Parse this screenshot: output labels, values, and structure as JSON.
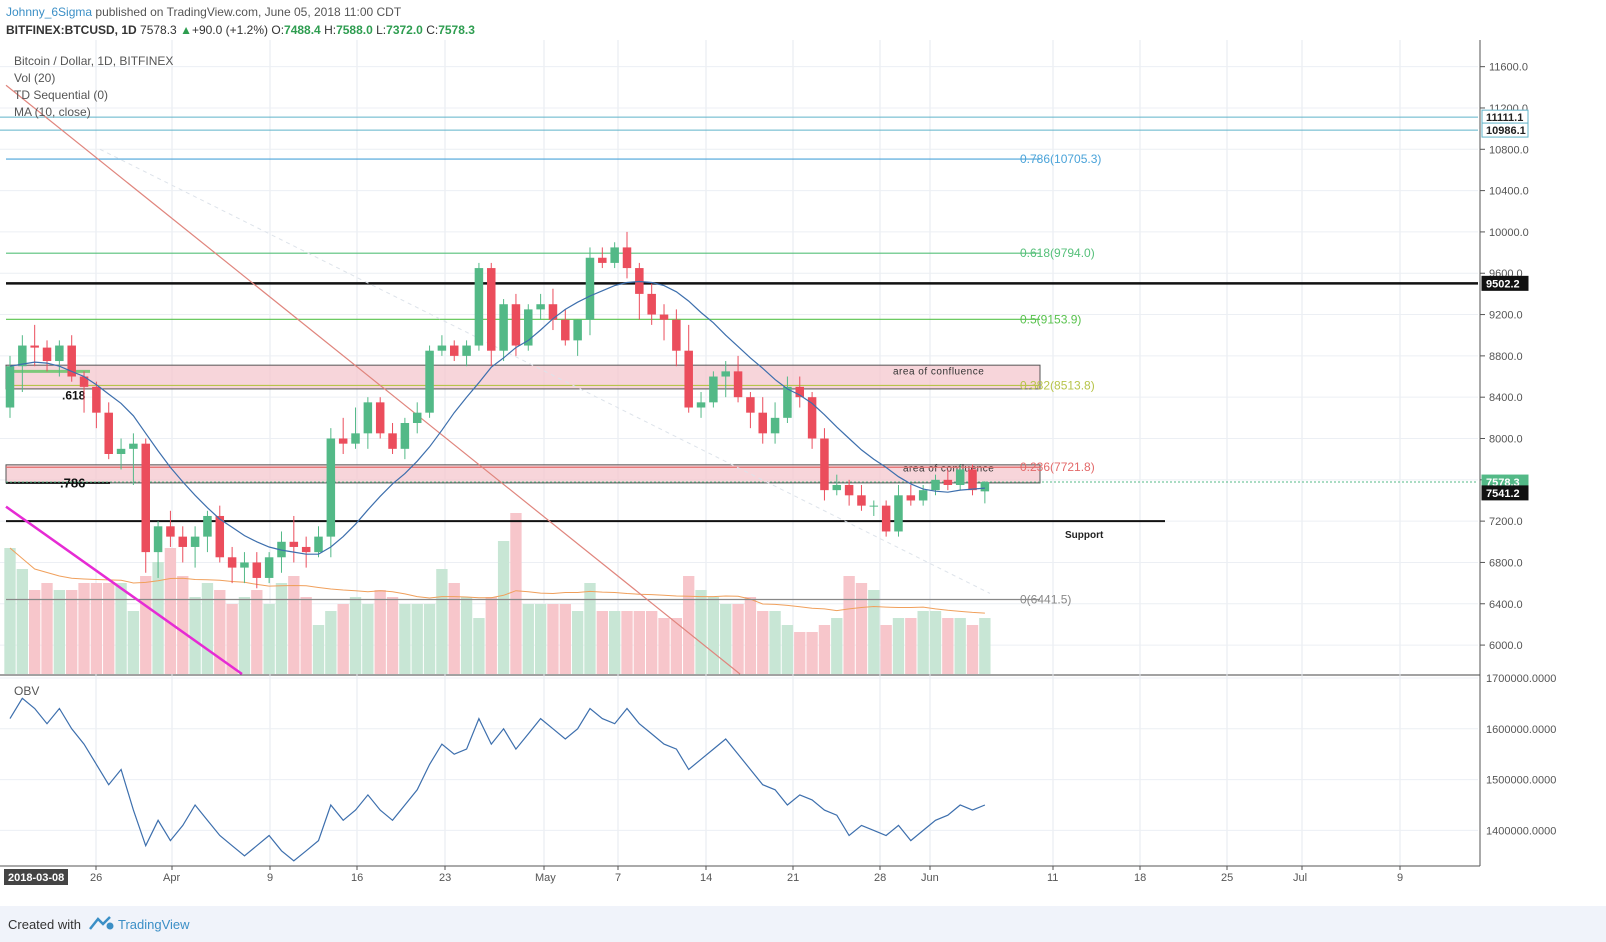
{
  "header": {
    "author": "Johnny_6Sigma",
    "published_text": "published on TradingView.com, June 05, 2018 11:00 CDT",
    "symbol": "BITFINEX:BTCUSD, 1D",
    "last": "7578.3",
    "change": "+90.0 (+1.2%)",
    "o_label": "O:",
    "o": "7488.4",
    "h_label": "H:",
    "h": "7588.0",
    "l_label": "L:",
    "l": "7372.0",
    "c_label": "C:",
    "c": "7578.3"
  },
  "legend": {
    "title": "Bitcoin / Dollar, 1D, BITFINEX",
    "vol": "Vol (20)",
    "td": "TD Sequential (0)",
    "ma": "MA (10, close)"
  },
  "footer": {
    "created_with": "Created with",
    "brand": "TradingView"
  },
  "colors": {
    "up": "#53b987",
    "down": "#eb4d5c",
    "obv": "#3d6fad",
    "ma": "#3d6fad",
    "zone": "#f4c7ce"
  },
  "chart_data": [
    {
      "type": "candlestick",
      "title": "Bitcoin / Dollar, 1D, BITFINEX",
      "x_ticks": [
        "2018-03-08",
        "26",
        "Apr",
        "9",
        "16",
        "23",
        "May",
        "7",
        "14",
        "21",
        "28",
        "Jun",
        "11",
        "18",
        "25",
        "Jul",
        "9"
      ],
      "y_ticks": [
        "11600.0",
        "11200.0",
        "10800.0",
        "10400.0",
        "10000.0",
        "9600.0",
        "9200.0",
        "8800.0",
        "8400.0",
        "8000.0",
        "7600.0",
        "7200.0",
        "6800.0",
        "6400.0",
        "6000.0"
      ],
      "ylim": [
        5720,
        11800
      ],
      "ohlc": [
        [
          8300,
          8800,
          8200,
          8700
        ],
        [
          8700,
          9000,
          8450,
          8900
        ],
        [
          8900,
          9100,
          8700,
          8880
        ],
        [
          8880,
          8950,
          8650,
          8750
        ],
        [
          8750,
          8950,
          8600,
          8900
        ],
        [
          8900,
          9000,
          8550,
          8600
        ],
        [
          8600,
          8650,
          8250,
          8500
        ],
        [
          8500,
          8550,
          8100,
          8250
        ],
        [
          8250,
          8350,
          7800,
          7850
        ],
        [
          7850,
          8000,
          7700,
          7900
        ],
        [
          7900,
          8050,
          7550,
          7950
        ],
        [
          7950,
          8000,
          6700,
          6900
        ],
        [
          6900,
          7200,
          6650,
          7150
        ],
        [
          7150,
          7300,
          6950,
          7050
        ],
        [
          7050,
          7150,
          6800,
          6950
        ],
        [
          6950,
          7150,
          6750,
          7050
        ],
        [
          7050,
          7300,
          6900,
          7250
        ],
        [
          7250,
          7350,
          6800,
          6850
        ],
        [
          6850,
          6950,
          6600,
          6750
        ],
        [
          6750,
          6900,
          6600,
          6800
        ],
        [
          6800,
          6900,
          6550,
          6650
        ],
        [
          6650,
          6900,
          6600,
          6850
        ],
        [
          6850,
          7100,
          6700,
          7000
        ],
        [
          7000,
          7250,
          6800,
          6950
        ],
        [
          6950,
          7050,
          6750,
          6900
        ],
        [
          6900,
          7150,
          6850,
          7050
        ],
        [
          7050,
          8100,
          6850,
          8000
        ],
        [
          8000,
          8200,
          7850,
          7950
        ],
        [
          7950,
          8300,
          7900,
          8050
        ],
        [
          8050,
          8400,
          7900,
          8350
        ],
        [
          8350,
          8400,
          8000,
          8050
        ],
        [
          8050,
          8150,
          7850,
          7900
        ],
        [
          7900,
          8200,
          7800,
          8150
        ],
        [
          8150,
          8350,
          8050,
          8250
        ],
        [
          8250,
          8900,
          8200,
          8850
        ],
        [
          8850,
          9000,
          8800,
          8900
        ],
        [
          8900,
          8950,
          8750,
          8800
        ],
        [
          8800,
          8950,
          8700,
          8900
        ],
        [
          8900,
          9700,
          8850,
          9650
        ],
        [
          9650,
          9700,
          8700,
          8850
        ],
        [
          8850,
          9350,
          8750,
          9300
        ],
        [
          9300,
          9400,
          8800,
          8900
        ],
        [
          8900,
          9300,
          8850,
          9250
        ],
        [
          9250,
          9400,
          9150,
          9300
        ],
        [
          9300,
          9450,
          9050,
          9150
        ],
        [
          9150,
          9250,
          8900,
          8950
        ],
        [
          8950,
          9150,
          8800,
          9150
        ],
        [
          9150,
          9850,
          9000,
          9750
        ],
        [
          9750,
          9850,
          9650,
          9700
        ],
        [
          9700,
          9900,
          9650,
          9850
        ],
        [
          9850,
          10000,
          9550,
          9650
        ],
        [
          9650,
          9700,
          9150,
          9400
        ],
        [
          9400,
          9500,
          9100,
          9200
        ],
        [
          9200,
          9300,
          8950,
          9150
        ],
        [
          9150,
          9250,
          8700,
          8850
        ],
        [
          8850,
          9100,
          8250,
          8300
        ],
        [
          8300,
          8450,
          8200,
          8350
        ],
        [
          8350,
          8650,
          8300,
          8600
        ],
        [
          8600,
          8750,
          8400,
          8650
        ],
        [
          8650,
          8800,
          8350,
          8400
        ],
        [
          8400,
          8450,
          8100,
          8250
        ],
        [
          8250,
          8400,
          7950,
          8050
        ],
        [
          8050,
          8350,
          7950,
          8200
        ],
        [
          8200,
          8600,
          8150,
          8500
        ],
        [
          8500,
          8600,
          8300,
          8400
        ],
        [
          8400,
          8450,
          7900,
          8000
        ],
        [
          8000,
          8100,
          7400,
          7500
        ],
        [
          7500,
          7650,
          7450,
          7550
        ],
        [
          7550,
          7600,
          7350,
          7450
        ],
        [
          7450,
          7550,
          7300,
          7350
        ],
        [
          7350,
          7400,
          7250,
          7350
        ],
        [
          7350,
          7400,
          7050,
          7100
        ],
        [
          7100,
          7550,
          7050,
          7450
        ],
        [
          7450,
          7550,
          7350,
          7400
        ],
        [
          7400,
          7550,
          7350,
          7500
        ],
        [
          7500,
          7650,
          7450,
          7600
        ],
        [
          7600,
          7700,
          7500,
          7550
        ],
        [
          7550,
          7750,
          7500,
          7700
        ],
        [
          7700,
          7750,
          7450,
          7500
        ],
        [
          7488.4,
          7588,
          7372,
          7578.3
        ]
      ],
      "volume": [
        "1.8",
        "1.5",
        "1.2",
        "1.3",
        "1.2",
        "1.2",
        "1.3",
        "1.3",
        "1.3",
        "1.3",
        "0.9",
        "1.4",
        "1.6",
        "1.8",
        "1.4",
        "1.1",
        "1.3",
        "1.2",
        "1.0",
        "1.1",
        "1.2",
        "1.0",
        "1.3",
        "1.4",
        "1.1",
        "0.7",
        "0.9",
        "1.0",
        "1.1",
        "1.0",
        "1.2",
        "1.1",
        "1.0",
        "1.0",
        "1.0",
        "1.5",
        "1.3",
        "1.1",
        "0.8",
        "1.1",
        "1.9",
        "2.3",
        "1.0",
        "1.0",
        "1.0",
        "1.0",
        "0.9",
        "1.3",
        "0.9",
        "0.9",
        "0.9",
        "0.9",
        "0.9",
        "0.8",
        "0.8",
        "1.4",
        "1.2",
        "1.1",
        "1.0",
        "1.0",
        "1.1",
        "0.9",
        "0.9",
        "0.7",
        "0.6",
        "0.6",
        "0.7",
        "0.8",
        "1.4",
        "1.3",
        "1.2",
        "0.7",
        "0.8",
        "0.8",
        "0.9",
        "0.9",
        "0.8",
        "0.8",
        "0.7",
        "0.8"
      ],
      "ma10": [
        8700,
        8720,
        8740,
        8730,
        8700,
        8650,
        8600,
        8520,
        8430,
        8340,
        8220,
        8050,
        7880,
        7720,
        7580,
        7450,
        7330,
        7220,
        7140,
        7060,
        7000,
        6950,
        6920,
        6900,
        6880,
        6880,
        6950,
        7050,
        7170,
        7310,
        7440,
        7560,
        7660,
        7780,
        7920,
        8080,
        8250,
        8400,
        8540,
        8690,
        8780,
        8880,
        8950,
        9050,
        9160,
        9250,
        9320,
        9380,
        9430,
        9480,
        9510,
        9520,
        9510,
        9480,
        9420,
        9330,
        9220,
        9120,
        9000,
        8890,
        8780,
        8680,
        8570,
        8480,
        8420,
        8340,
        8230,
        8110,
        8000,
        7890,
        7800,
        7720,
        7630,
        7560,
        7510,
        7490,
        7480,
        7500,
        7510,
        7520
      ],
      "horizontal_levels": [
        {
          "label": "0.786(10705.3)",
          "value": 10705.3
        },
        {
          "label": "0.618(9794.0)",
          "value": 9794.0
        },
        {
          "label": "0.5(9153.9)",
          "value": 9153.9
        },
        {
          "label": "0.382(8513.8)",
          "value": 8513.8
        },
        {
          "label": "0.236(7721.8)",
          "value": 7721.8
        },
        {
          "label": "0(6441.5)",
          "value": 6441.5
        }
      ],
      "price_labels": [
        "11111.1",
        "10986.1",
        "9502.2",
        "7578.3",
        "7541.2"
      ],
      "annotations": [
        "area of confluence",
        "area of confluence",
        "Support",
        ".618",
        ".786"
      ]
    },
    {
      "type": "line",
      "title": "OBV",
      "y_ticks": [
        "1700000.0000",
        "1600000.0000",
        "1500000.0000",
        "1400000.0000"
      ],
      "ylim": [
        1330000,
        1700000
      ],
      "values": [
        1620000,
        1660000,
        1640000,
        1610000,
        1640000,
        1600000,
        1570000,
        1530000,
        1490000,
        1520000,
        1440000,
        1370000,
        1420000,
        1380000,
        1410000,
        1450000,
        1420000,
        1390000,
        1370000,
        1350000,
        1370000,
        1390000,
        1360000,
        1340000,
        1360000,
        1380000,
        1450000,
        1420000,
        1440000,
        1470000,
        1440000,
        1420000,
        1450000,
        1480000,
        1530000,
        1570000,
        1550000,
        1560000,
        1620000,
        1570000,
        1600000,
        1560000,
        1590000,
        1620000,
        1600000,
        1580000,
        1600000,
        1640000,
        1620000,
        1610000,
        1640000,
        1610000,
        1590000,
        1570000,
        1560000,
        1520000,
        1540000,
        1560000,
        1580000,
        1550000,
        1520000,
        1490000,
        1480000,
        1450000,
        1470000,
        1460000,
        1440000,
        1430000,
        1390000,
        1410000,
        1400000,
        1390000,
        1410000,
        1380000,
        1400000,
        1420000,
        1430000,
        1450000,
        1440000,
        1450000
      ]
    }
  ]
}
